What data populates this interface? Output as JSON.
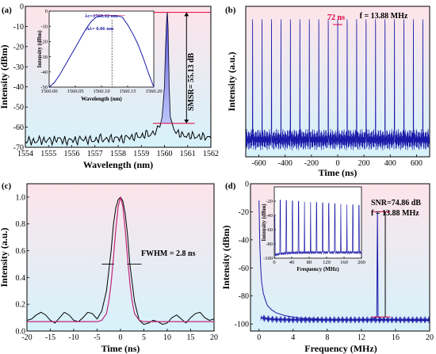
{
  "colors": {
    "trace": "#1a1aa8",
    "red": "#e0003c",
    "fill_top": "#fde4ea",
    "fill_bottom": "#d6f2fb"
  },
  "chart_data": [
    {
      "id": "a",
      "panel_label": "(a)",
      "type": "line",
      "xlabel": "Wavelength (nm)",
      "ylabel": "Intensity (dBm)",
      "xlim": [
        1554,
        1562
      ],
      "ylim": [
        -70,
        0
      ],
      "xticks": [
        1554,
        1555,
        1556,
        1557,
        1558,
        1559,
        1560,
        1561,
        1562
      ],
      "yticks": [
        -70,
        -60,
        -50,
        -40,
        -30,
        -20,
        -10,
        0
      ],
      "annotations": {
        "smsr": "SMSR= 55.13 dB",
        "top_level": -3,
        "bottom_level": -58.1
      },
      "series": [
        {
          "x": [
            1554,
            1554.2,
            1554.4,
            1554.6,
            1554.8,
            1555,
            1555.2,
            1555.4,
            1555.6,
            1555.8,
            1556,
            1556.2,
            1556.4,
            1556.6,
            1556.8,
            1557,
            1557.2,
            1557.4,
            1557.6,
            1557.8,
            1558,
            1558.2,
            1558.4,
            1558.6,
            1558.8,
            1559,
            1559.2,
            1559.4,
            1559.6,
            1559.7,
            1559.8,
            1559.9,
            1560,
            1560.05,
            1560.1,
            1560.12,
            1560.15,
            1560.2,
            1560.25,
            1560.3,
            1560.4,
            1560.5,
            1560.6,
            1560.8,
            1561,
            1561.2,
            1561.4,
            1561.6,
            1561.8,
            1562
          ],
          "y": [
            -67,
            -66.5,
            -67.5,
            -66,
            -67,
            -66,
            -67,
            -65.5,
            -66.5,
            -67,
            -66,
            -67,
            -65.5,
            -66.5,
            -66,
            -67,
            -65,
            -66.5,
            -65.5,
            -66,
            -65,
            -66.5,
            -64.5,
            -65.5,
            -64,
            -65,
            -63,
            -64,
            -62,
            -61,
            -59,
            -55,
            -40,
            -20,
            -6,
            -3,
            -10,
            -40,
            -55,
            -58,
            -61,
            -62,
            -63,
            -64,
            -64.5,
            -64,
            -65,
            -64.5,
            -65,
            -65.5
          ]
        }
      ],
      "inset": {
        "type": "line",
        "xlabel": "Wavelength (nm)",
        "ylabel": "Intensity (dBm)",
        "xlim": [
          1560.0,
          1560.2
        ],
        "ylim": [
          -50,
          0
        ],
        "xticks": [
          "1560.00",
          "1560.05",
          "1560.10",
          "1560.15",
          "1560.20"
        ],
        "yticks": [
          -50,
          -40,
          -30,
          -20,
          -10,
          0
        ],
        "annotations": {
          "center": "λc=1560.12 nm",
          "width": "Δλ= 0.06 nm",
          "center_value": 1560.12
        },
        "series": [
          {
            "x": [
              1560.0,
              1560.01,
              1560.02,
              1560.03,
              1560.04,
              1560.05,
              1560.06,
              1560.07,
              1560.08,
              1560.09,
              1560.1,
              1560.11,
              1560.12,
              1560.13,
              1560.14,
              1560.15,
              1560.16,
              1560.17,
              1560.18,
              1560.19,
              1560.2
            ],
            "y": [
              -50,
              -47,
              -42,
              -36,
              -30,
              -24,
              -18,
              -12,
              -7,
              -4,
              -3,
              -3,
              -3,
              -3,
              -4,
              -9,
              -15,
              -22,
              -31,
              -41,
              -50
            ]
          }
        ]
      }
    },
    {
      "id": "b",
      "panel_label": "(b)",
      "type": "line",
      "xlabel": "Time (ns)",
      "ylabel": "Intensity (a.u.)",
      "xlim": [
        -700,
        700
      ],
      "ylim": [
        0,
        1.05
      ],
      "xticks": [
        -600,
        -400,
        -200,
        0,
        200,
        400,
        600
      ],
      "yticks": [],
      "annotations": {
        "period": "72 ns",
        "freq": "f = 13.88 MHz"
      },
      "series": [
        {
          "period_ns": 72,
          "peak": 1.0,
          "baseline": 0.12
        }
      ]
    },
    {
      "id": "c",
      "panel_label": "(c)",
      "type": "line",
      "xlabel": "Time (ns)",
      "ylabel": "Intensity (a.u.)",
      "xlim": [
        -20,
        20
      ],
      "ylim": [
        0,
        1.1
      ],
      "xticks": [
        -20,
        -15,
        -10,
        -5,
        0,
        5,
        10,
        15,
        20
      ],
      "yticks": [
        "0.0",
        "0.2",
        "0.4",
        "0.6",
        "0.8",
        "1.0"
      ],
      "annotations": {
        "fwhm": "FWHM = 2.8 ns"
      },
      "series": [
        {
          "name": "",
          "x": [
            -20,
            -19,
            -18,
            -17,
            -16,
            -15,
            -14,
            -13,
            -12,
            -11,
            -10,
            -9,
            -8,
            -7,
            -6,
            -5,
            -4,
            -3,
            -2,
            -1.5,
            -1,
            -0.5,
            0,
            0.5,
            1,
            1.5,
            2,
            3,
            4,
            5,
            6,
            7,
            8,
            9,
            10,
            11,
            12,
            13,
            14,
            15,
            16,
            17,
            18,
            19,
            20
          ],
          "y": [
            0.08,
            0.09,
            0.12,
            0.14,
            0.12,
            0.08,
            0.06,
            0.1,
            0.14,
            0.12,
            0.08,
            0.07,
            0.1,
            0.14,
            0.13,
            0.09,
            0.15,
            0.3,
            0.6,
            0.8,
            0.92,
            0.98,
            1.0,
            0.97,
            0.88,
            0.72,
            0.5,
            0.22,
            0.08,
            0.05,
            0.06,
            0.08,
            0.07,
            0.05,
            0.06,
            0.1,
            0.12,
            0.09,
            0.06,
            0.1,
            0.13,
            0.14,
            0.1,
            0.08,
            0.09
          ]
        },
        {
          "name": "",
          "x": [
            -20,
            -6,
            -5,
            -4,
            -3,
            -2.5,
            -2,
            -1.5,
            -1,
            -0.5,
            0,
            0.5,
            1,
            1.5,
            2,
            2.5,
            3,
            4,
            5,
            6,
            20
          ],
          "y": [
            0.07,
            0.07,
            0.07,
            0.08,
            0.13,
            0.22,
            0.36,
            0.55,
            0.76,
            0.93,
            1.0,
            0.93,
            0.76,
            0.55,
            0.36,
            0.22,
            0.13,
            0.08,
            0.07,
            0.07,
            0.07
          ]
        }
      ]
    },
    {
      "id": "d",
      "panel_label": "(d)",
      "type": "line",
      "xlabel": "Frequency (MHz)",
      "ylabel": "Intensity (dBm)",
      "xlim": [
        -1,
        20
      ],
      "ylim": [
        -105,
        0
      ],
      "xticks": [
        0,
        4,
        8,
        12,
        16,
        20
      ],
      "yticks": [
        -100,
        -80,
        -60,
        -40,
        -20,
        0
      ],
      "annotations": {
        "snr": "SNR=74.86 dB",
        "freq": "f = 13.88 MHz",
        "peak_x": 13.88,
        "top_level": -20,
        "bottom_level": -95
      },
      "series": [
        {
          "x": [
            0,
            0.05,
            0.1,
            0.2,
            0.3,
            0.5,
            0.8,
            1,
            1.5,
            2,
            3,
            4,
            5,
            6,
            8,
            10,
            12,
            13,
            13.8,
            13.88,
            13.96,
            14.5,
            16,
            18,
            20
          ],
          "y": [
            -12,
            -30,
            -45,
            -60,
            -70,
            -78,
            -84,
            -87,
            -90,
            -92,
            -94,
            -95,
            -96,
            -96,
            -97,
            -97,
            -97,
            -97,
            -95,
            -20,
            -95,
            -97,
            -97,
            -97.5,
            -97.5
          ]
        }
      ],
      "inset": {
        "type": "line",
        "xlabel": "Frequency (MHz)",
        "ylabel": "Intensity (dBm)",
        "xlim": [
          0,
          200
        ],
        "ylim": [
          -100,
          0
        ],
        "xticks": [
          0,
          40,
          80,
          120,
          160,
          200
        ],
        "yticks": [
          -100,
          -80,
          -60,
          -40,
          -20
        ],
        "series": [
          {
            "harmonic_spacing": 13.88,
            "peak_level": -18,
            "floor": -92
          }
        ]
      }
    }
  ]
}
